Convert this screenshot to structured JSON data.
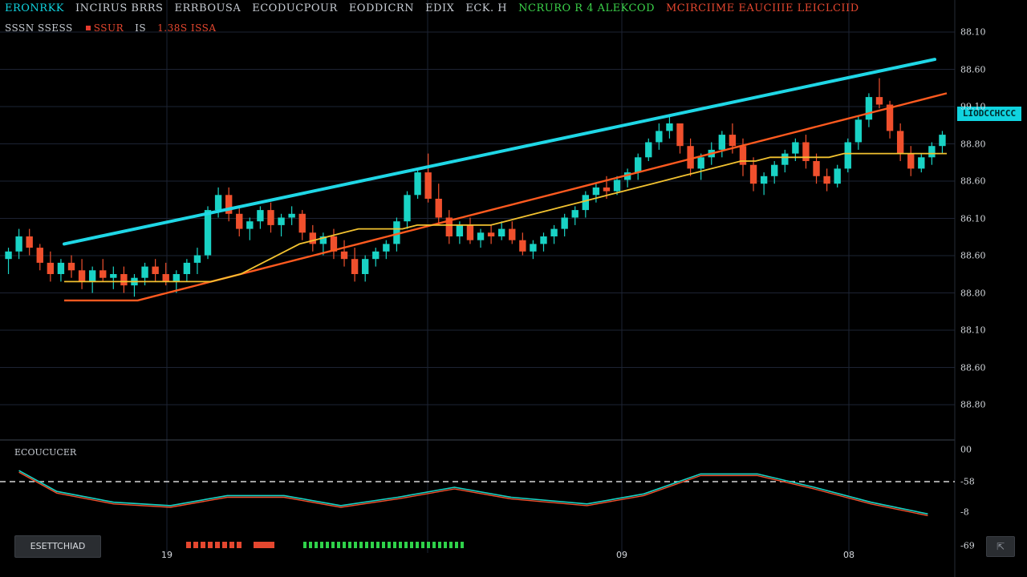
{
  "header": {
    "line1": [
      {
        "text": "ERONRKK",
        "color": "#10d3df"
      },
      {
        "text": "INCIRUS BRRS",
        "color": "#c7ccd3"
      },
      {
        "text": "ERRBOUSA",
        "color": "#c7ccd3"
      },
      {
        "text": "ECODUCPOUR",
        "color": "#c7ccd3"
      },
      {
        "text": "EODDICRN",
        "color": "#c7ccd3"
      },
      {
        "text": "EDIX",
        "color": "#c7ccd3"
      },
      {
        "text": "ECK. H",
        "color": "#c7ccd3"
      },
      {
        "text": "NCRURO R 4 ALEKCOD",
        "color": "#3bd24a"
      },
      {
        "text": "MCIRCIIME EAUCIIIE LEICLCIID",
        "color": "#e5472f"
      }
    ],
    "line2": [
      {
        "text": "SSSN SSESS",
        "color": "#c7ccd3"
      },
      {
        "text": "SSUR",
        "color": "#e5472f",
        "dot": true
      },
      {
        "text": "IS",
        "color": "#c7ccd3"
      },
      {
        "text": "1.38S ISSA",
        "color": "#e5472f"
      }
    ]
  },
  "price_tag": "LIODCCHCCC",
  "oscillator": {
    "title": "ECOUCUCER"
  },
  "controls": {
    "left_button": "ESETTCHIAD"
  },
  "x_ticks": [
    {
      "label": "19",
      "x": 208
    },
    {
      "label": "09",
      "x": 775
    },
    {
      "label": "08",
      "x": 1058
    }
  ],
  "y_ticks": [
    {
      "label": "88.10"
    },
    {
      "label": "88.60"
    },
    {
      "label": "99.10"
    },
    {
      "label": "88.80"
    },
    {
      "label": "88.60"
    },
    {
      "label": "86.10"
    },
    {
      "label": "88.60"
    },
    {
      "label": "88.80"
    },
    {
      "label": "88.10"
    },
    {
      "label": "88.60"
    },
    {
      "label": "88.80"
    }
  ],
  "osc_ticks": [
    {
      "label": "00"
    },
    {
      "label": "-58"
    },
    {
      "label": "-8"
    },
    {
      "label": "-69"
    }
  ],
  "colors": {
    "bull": "#19d3c5",
    "bear": "#f0502d",
    "trendline": "#1fd7e6",
    "ma_fast": "#f2c230",
    "ma_slow": "#ff5a1f",
    "grid": "#1d2333",
    "osc_line_a": "#19d3c5",
    "osc_line_b": "#f0502d"
  },
  "chart_data": {
    "type": "candlestick",
    "y_range": [
      0,
      100
    ],
    "candles": [
      [
        44,
        47,
        40,
        46
      ],
      [
        46,
        52,
        44,
        50
      ],
      [
        50,
        52,
        45,
        47
      ],
      [
        47,
        48,
        41,
        43
      ],
      [
        43,
        46,
        38,
        40
      ],
      [
        40,
        44,
        38,
        43
      ],
      [
        43,
        45,
        39,
        41
      ],
      [
        41,
        44,
        36,
        38
      ],
      [
        38,
        42,
        35,
        41
      ],
      [
        41,
        44,
        38,
        39
      ],
      [
        39,
        42,
        36,
        40
      ],
      [
        40,
        42,
        35,
        37
      ],
      [
        37,
        40,
        34,
        39
      ],
      [
        39,
        43,
        37,
        42
      ],
      [
        42,
        44,
        38,
        40
      ],
      [
        40,
        43,
        37,
        38
      ],
      [
        38,
        41,
        35,
        40
      ],
      [
        40,
        44,
        38,
        43
      ],
      [
        43,
        47,
        40,
        45
      ],
      [
        45,
        58,
        44,
        57
      ],
      [
        57,
        63,
        55,
        61
      ],
      [
        61,
        63,
        54,
        56
      ],
      [
        56,
        58,
        50,
        52
      ],
      [
        52,
        55,
        49,
        54
      ],
      [
        54,
        58,
        52,
        57
      ],
      [
        57,
        59,
        51,
        53
      ],
      [
        53,
        56,
        50,
        55
      ],
      [
        55,
        58,
        53,
        56
      ],
      [
        56,
        57,
        49,
        51
      ],
      [
        51,
        53,
        46,
        48
      ],
      [
        48,
        51,
        45,
        50
      ],
      [
        50,
        52,
        44,
        46
      ],
      [
        46,
        49,
        42,
        44
      ],
      [
        44,
        47,
        38,
        40
      ],
      [
        40,
        45,
        38,
        44
      ],
      [
        44,
        47,
        42,
        46
      ],
      [
        46,
        49,
        44,
        48
      ],
      [
        48,
        55,
        46,
        54
      ],
      [
        54,
        62,
        52,
        61
      ],
      [
        61,
        68,
        60,
        67
      ],
      [
        67,
        72,
        59,
        60
      ],
      [
        60,
        64,
        53,
        55
      ],
      [
        55,
        57,
        48,
        50
      ],
      [
        50,
        54,
        48,
        53
      ],
      [
        53,
        55,
        48,
        49
      ],
      [
        49,
        52,
        47,
        51
      ],
      [
        51,
        53,
        48,
        50
      ],
      [
        50,
        54,
        49,
        52
      ],
      [
        52,
        54,
        48,
        49
      ],
      [
        49,
        51,
        45,
        46
      ],
      [
        46,
        49,
        44,
        48
      ],
      [
        48,
        51,
        46,
        50
      ],
      [
        50,
        53,
        48,
        52
      ],
      [
        52,
        56,
        50,
        55
      ],
      [
        55,
        58,
        53,
        57
      ],
      [
        57,
        62,
        55,
        61
      ],
      [
        61,
        64,
        59,
        63
      ],
      [
        63,
        66,
        60,
        62
      ],
      [
        62,
        66,
        61,
        65
      ],
      [
        65,
        68,
        63,
        67
      ],
      [
        67,
        72,
        65,
        71
      ],
      [
        71,
        76,
        70,
        75
      ],
      [
        75,
        80,
        73,
        78
      ],
      [
        78,
        82,
        76,
        80
      ],
      [
        80,
        79,
        72,
        74
      ],
      [
        74,
        76,
        66,
        68
      ],
      [
        68,
        72,
        65,
        71
      ],
      [
        71,
        75,
        69,
        73
      ],
      [
        73,
        78,
        71,
        77
      ],
      [
        77,
        80,
        72,
        74
      ],
      [
        74,
        76,
        66,
        69
      ],
      [
        69,
        71,
        62,
        64
      ],
      [
        64,
        67,
        61,
        66
      ],
      [
        66,
        70,
        64,
        69
      ],
      [
        69,
        73,
        67,
        72
      ],
      [
        72,
        76,
        70,
        75
      ],
      [
        75,
        77,
        68,
        70
      ],
      [
        70,
        72,
        64,
        66
      ],
      [
        66,
        68,
        62,
        64
      ],
      [
        64,
        69,
        63,
        68
      ],
      [
        68,
        76,
        67,
        75
      ],
      [
        75,
        82,
        73,
        81
      ],
      [
        81,
        88,
        79,
        87
      ],
      [
        87,
        92,
        84,
        85
      ],
      [
        85,
        86,
        76,
        78
      ],
      [
        78,
        80,
        70,
        72
      ],
      [
        72,
        74,
        66,
        68
      ],
      [
        68,
        72,
        67,
        71
      ],
      [
        71,
        75,
        69,
        74
      ],
      [
        74,
        78,
        72,
        77
      ]
    ],
    "ma_fast": [
      38,
      38,
      38,
      38,
      38,
      38,
      38,
      38,
      38,
      38,
      38,
      39,
      40,
      42,
      44,
      46,
      48,
      49,
      50,
      51,
      52,
      52,
      52,
      52,
      53,
      53,
      53,
      53,
      53,
      53,
      54,
      55,
      56,
      57,
      58,
      59,
      60,
      61,
      62,
      63,
      64,
      65,
      66,
      67,
      68,
      69,
      70,
      70,
      71,
      71,
      71,
      71,
      71,
      72,
      72,
      72,
      72,
      72,
      72,
      72,
      72
    ],
    "ma_slow": [
      33,
      33,
      33,
      33,
      33,
      33,
      34,
      35,
      36,
      37,
      38,
      39,
      40,
      41,
      42,
      43,
      44,
      45,
      46,
      47,
      48,
      49,
      50,
      51,
      52,
      53,
      54,
      55,
      56,
      57,
      58,
      59,
      60,
      61,
      62,
      63,
      64,
      65,
      66,
      67,
      68,
      69,
      70,
      71,
      72,
      73,
      74,
      75,
      76,
      77,
      78,
      79,
      80,
      81,
      82,
      83,
      84,
      85,
      86,
      87,
      88
    ],
    "trendline": [
      [
        0,
        48
      ],
      [
        1,
        97
      ]
    ],
    "oscillator": [
      [
        0.02,
        0.3
      ],
      [
        0.06,
        0.55
      ],
      [
        0.12,
        0.68
      ],
      [
        0.18,
        0.72
      ],
      [
        0.24,
        0.6
      ],
      [
        0.3,
        0.6
      ],
      [
        0.36,
        0.72
      ],
      [
        0.42,
        0.62
      ],
      [
        0.48,
        0.5
      ],
      [
        0.54,
        0.62
      ],
      [
        0.62,
        0.7
      ],
      [
        0.68,
        0.58
      ],
      [
        0.74,
        0.34
      ],
      [
        0.8,
        0.34
      ],
      [
        0.86,
        0.5
      ],
      [
        0.92,
        0.68
      ],
      [
        0.98,
        0.82
      ]
    ]
  }
}
